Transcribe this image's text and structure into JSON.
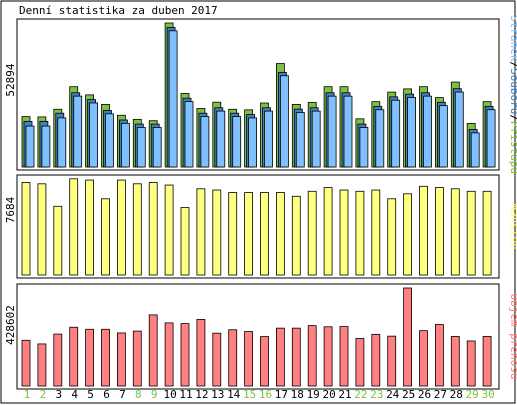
{
  "chart_data": {
    "type": "bar",
    "title": "Denní statistika za duben 2017",
    "categories": [
      "1",
      "2",
      "3",
      "4",
      "5",
      "6",
      "7",
      "8",
      "9",
      "10",
      "11",
      "12",
      "13",
      "14",
      "15",
      "16",
      "17",
      "18",
      "19",
      "20",
      "21",
      "22",
      "23",
      "24",
      "25",
      "26",
      "27",
      "28",
      "29",
      "30"
    ],
    "weekend_days": [
      "1",
      "2",
      "8",
      "9",
      "15",
      "16",
      "22",
      "23",
      "29",
      "30"
    ],
    "panels": [
      {
        "name": "hits",
        "max_label": "52894",
        "ylim": [
          0,
          52894
        ],
        "series": [
          {
            "name": "Přístupů",
            "color": "#80c040",
            "values": [
              18500,
              18400,
              21200,
              29500,
              26500,
              23000,
              19000,
              17500,
              17000,
              52894,
              27000,
              21500,
              23800,
              21200,
              21000,
              23500,
              38000,
              23000,
              23700,
              29500,
              29500,
              17700,
              24000,
              27500,
              28700,
              29500,
              25500,
              31200,
              16000,
              24000
            ]
          },
          {
            "name": "Souborů",
            "color": "#4080c0",
            "values": [
              17500,
              17500,
              20500,
              28000,
              25500,
              21500,
              18000,
              16500,
              16500,
              52000,
              26000,
              20500,
              22500,
              20500,
              20000,
              22500,
              35500,
              22000,
              22500,
              28000,
              28000,
              16500,
              23000,
              26500,
              27500,
              28000,
              24500,
              29500,
              14500,
              23000
            ]
          },
          {
            "name": "Stránek",
            "color": "#80c0ff",
            "values": [
              16500,
              16500,
              19500,
              27500,
              25000,
              21000,
              17500,
              16000,
              16000,
              51500,
              25500,
              20000,
              22000,
              20000,
              19500,
              22000,
              35000,
              21500,
              22000,
              27500,
              27500,
              16000,
              22500,
              26000,
              27000,
              27500,
              24000,
              29000,
              14000,
              22500
            ]
          }
        ]
      },
      {
        "name": "visits",
        "max_label": "7684",
        "ylim": [
          0,
          7684
        ],
        "series": [
          {
            "name": "Návštěv",
            "color": "#ffff80",
            "values": [
              7400,
              7300,
              5500,
              7700,
              7600,
              6100,
              7600,
              7300,
              7400,
              7200,
              5400,
              6900,
              6800,
              6600,
              6600,
              6600,
              6600,
              6300,
              6700,
              7000,
              6800,
              6700,
              6800,
              6100,
              6500,
              7100,
              7000,
              6900,
              6700,
              6700
            ]
          }
        ]
      },
      {
        "name": "kbytes",
        "max_label": "428602",
        "ylim": [
          0,
          428602
        ],
        "series": [
          {
            "name": "Objem přenosu",
            "color": "#ff8080",
            "values": [
              200000,
              184000,
              227000,
              257000,
              248000,
              248000,
              232000,
              240000,
              311000,
              276000,
              273000,
              291000,
              231000,
              246000,
              238000,
              216000,
              253000,
              253000,
              264000,
              259000,
              260000,
              208000,
              226000,
              218000,
              428602,
              242000,
              269000,
              217000,
              197000,
              217000
            ]
          }
        ]
      }
    ]
  }
}
